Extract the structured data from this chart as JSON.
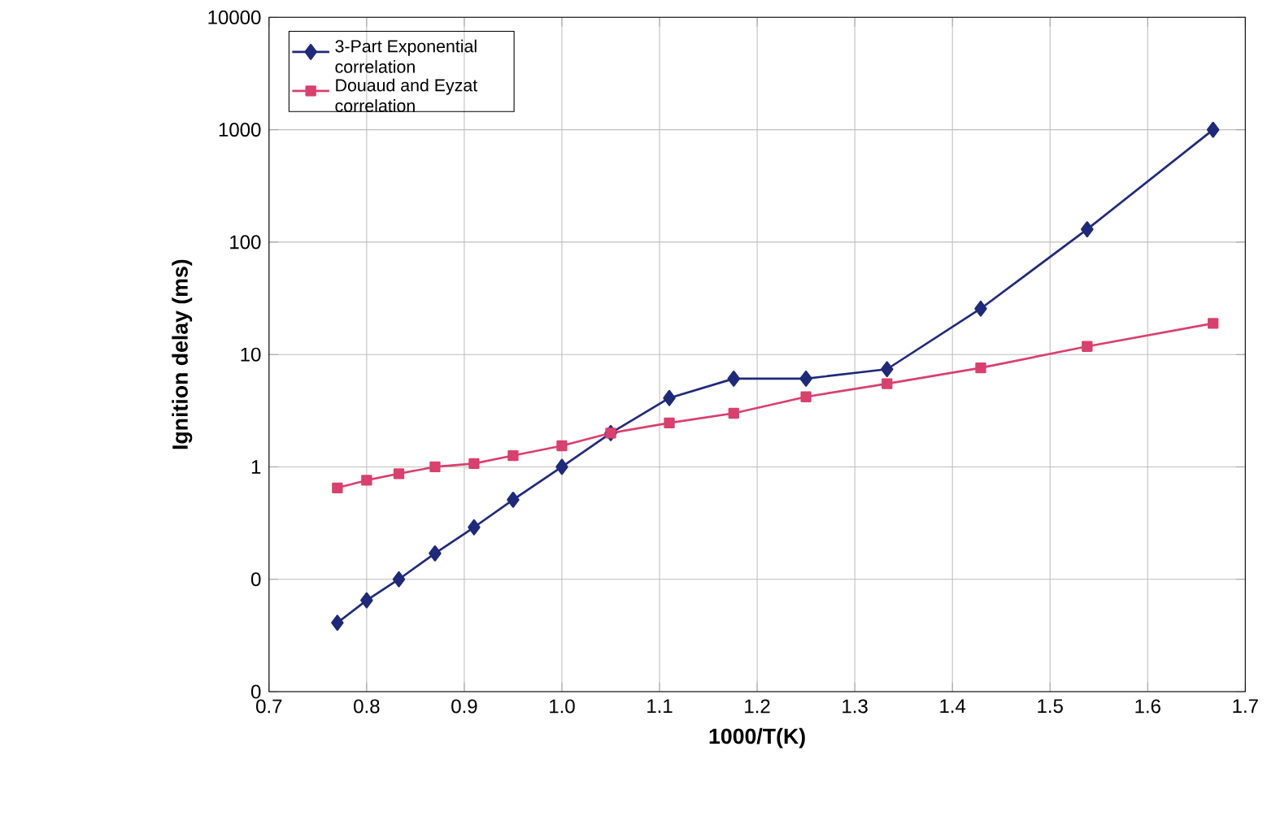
{
  "chart_data": {
    "type": "line",
    "xlabel": "1000/T(K)",
    "ylabel": "Ignition delay (ms)",
    "log": "y",
    "grid": true,
    "legend": "top left",
    "line_style": "solid",
    "xlim": [
      0.7,
      1.7
    ],
    "xticks": [
      {
        "value": 0.7,
        "label": "0.7"
      },
      {
        "value": 0.8,
        "label": "0.8"
      },
      {
        "value": 0.9,
        "label": "0.9"
      },
      {
        "value": 1.0,
        "label": "1.0"
      },
      {
        "value": 1.1,
        "label": "1.1"
      },
      {
        "value": 1.2,
        "label": "1.2"
      },
      {
        "value": 1.3,
        "label": "1.3"
      },
      {
        "value": 1.4,
        "label": "1.4"
      },
      {
        "value": 1.5,
        "label": "1.5"
      },
      {
        "value": 1.6,
        "label": "1.6"
      },
      {
        "value": 1.7,
        "label": "1.7"
      }
    ],
    "ylim": [
      0.01,
      10000
    ],
    "yticks": [
      {
        "value": 0.01,
        "label": "0"
      },
      {
        "value": 0.1,
        "label": "0"
      },
      1,
      10,
      100,
      1000,
      10000
    ],
    "series": [
      {
        "name": "3-Part Exponential correlation",
        "color": "#1f2a7a",
        "marker": "diamond",
        "x": [
          0.77,
          0.8,
          0.833,
          0.87,
          0.91,
          0.95,
          1.0,
          1.05,
          1.11,
          1.176,
          1.25,
          1.333,
          1.429,
          1.538,
          1.667
        ],
        "values": [
          0.041,
          0.065,
          0.1,
          0.17,
          0.29,
          0.51,
          1.0,
          2.0,
          4.1,
          6.1,
          6.1,
          7.4,
          25.6,
          130,
          1000
        ]
      },
      {
        "name": "Douaud and Eyzat correlation",
        "color": "#d9406e",
        "marker": "square",
        "x": [
          0.77,
          0.8,
          0.833,
          0.87,
          0.91,
          0.95,
          1.0,
          1.05,
          1.11,
          1.176,
          1.25,
          1.333,
          1.429,
          1.538,
          1.667
        ],
        "values": [
          0.65,
          0.76,
          0.87,
          1.0,
          1.07,
          1.26,
          1.54,
          2.0,
          2.46,
          3.0,
          4.2,
          5.5,
          7.6,
          11.8,
          18.9
        ]
      }
    ]
  }
}
